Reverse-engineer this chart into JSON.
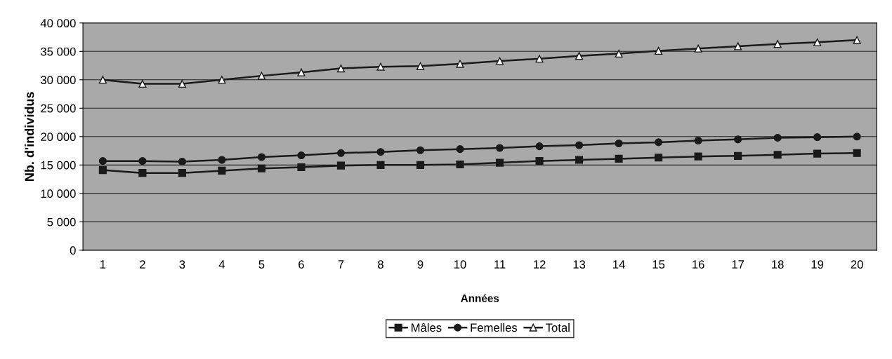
{
  "chart_data": {
    "type": "line",
    "xlabel": "Années",
    "ylabel": "Nb. d'individus",
    "categories": [
      "1",
      "2",
      "3",
      "4",
      "5",
      "6",
      "7",
      "8",
      "9",
      "10",
      "11",
      "12",
      "13",
      "14",
      "15",
      "16",
      "17",
      "18",
      "19",
      "20"
    ],
    "series": [
      {
        "name": "Mâles",
        "color": "#1a1a1a",
        "marker": "square",
        "values": [
          14100,
          13600,
          13600,
          14000,
          14400,
          14600,
          14900,
          15000,
          15000,
          15100,
          15400,
          15700,
          15900,
          16100,
          16300,
          16500,
          16600,
          16800,
          17000,
          17100
        ]
      },
      {
        "name": "Femelles",
        "color": "#1a1a1a",
        "marker": "circle",
        "values": [
          15700,
          15700,
          15600,
          15900,
          16400,
          16700,
          17100,
          17300,
          17600,
          17800,
          18000,
          18300,
          18500,
          18800,
          19000,
          19300,
          19500,
          19800,
          19900,
          20000
        ]
      },
      {
        "name": "Total",
        "color": "#1a1a1a",
        "marker": "triangle",
        "values": [
          30000,
          29300,
          29300,
          30000,
          30700,
          31300,
          32000,
          32300,
          32400,
          32800,
          33300,
          33700,
          34200,
          34600,
          35100,
          35500,
          35900,
          36300,
          36600,
          37000
        ]
      }
    ],
    "ylim": [
      0,
      40000
    ],
    "yticks": [
      0,
      {
        "value": 5000,
        "label": "5 000"
      },
      {
        "value": 10000,
        "label": "10 000"
      },
      {
        "value": 15000,
        "label": "15 000"
      },
      {
        "value": 20000,
        "label": "20 000"
      },
      {
        "value": 25000,
        "label": "25 000"
      },
      {
        "value": 30000,
        "label": "30 000"
      },
      {
        "value": 35000,
        "label": "35 000"
      },
      {
        "value": 40000,
        "label": "40 000"
      }
    ],
    "grid": "y",
    "legend": "bottom",
    "line_style": "solid"
  }
}
